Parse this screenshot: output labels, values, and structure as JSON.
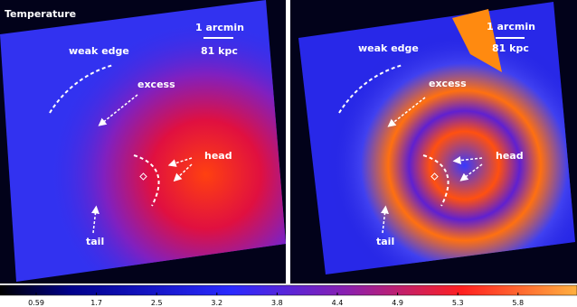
{
  "title": "Temperature",
  "panels": [
    {
      "scale_bar": {
        "angle": "1 arcmin",
        "distance": "81 kpc"
      },
      "annotations": {
        "weak_edge": "weak edge",
        "excess": "excess",
        "head": "head",
        "tail": "tail"
      }
    },
    {
      "scale_bar": {
        "angle": "1 arcmin",
        "distance": "81 kpc"
      },
      "annotations": {
        "weak_edge": "weak edge",
        "excess": "excess",
        "head": "head",
        "tail": "tail"
      }
    }
  ],
  "colorbar": {
    "ticks": [
      0.59,
      1.7,
      2.5,
      3.2,
      3.8,
      4.4,
      4.9,
      5.3,
      5.8
    ]
  }
}
